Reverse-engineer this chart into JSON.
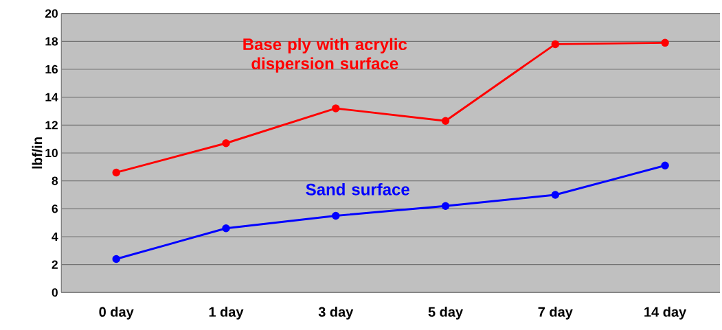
{
  "chart_data": {
    "type": "line",
    "ylabel": "lbf/in",
    "categories": [
      "0 day",
      "1 day",
      "3 day",
      "5 day",
      "7 day",
      "14 day"
    ],
    "series": [
      {
        "name": "Base ply with acrylic dispersion surface",
        "color": "#ff0000",
        "values": [
          8.6,
          10.7,
          13.2,
          12.3,
          17.8,
          17.9
        ]
      },
      {
        "name": "Sand surface",
        "color": "#0000ff",
        "values": [
          2.4,
          4.6,
          5.5,
          6.2,
          7.0,
          9.1
        ]
      }
    ],
    "ylim": [
      0,
      20
    ],
    "yticks": [
      0,
      2,
      4,
      6,
      8,
      10,
      12,
      14,
      16,
      18,
      20
    ],
    "grid": "y",
    "legend": false,
    "marker": "circle",
    "line_style": "solid"
  }
}
